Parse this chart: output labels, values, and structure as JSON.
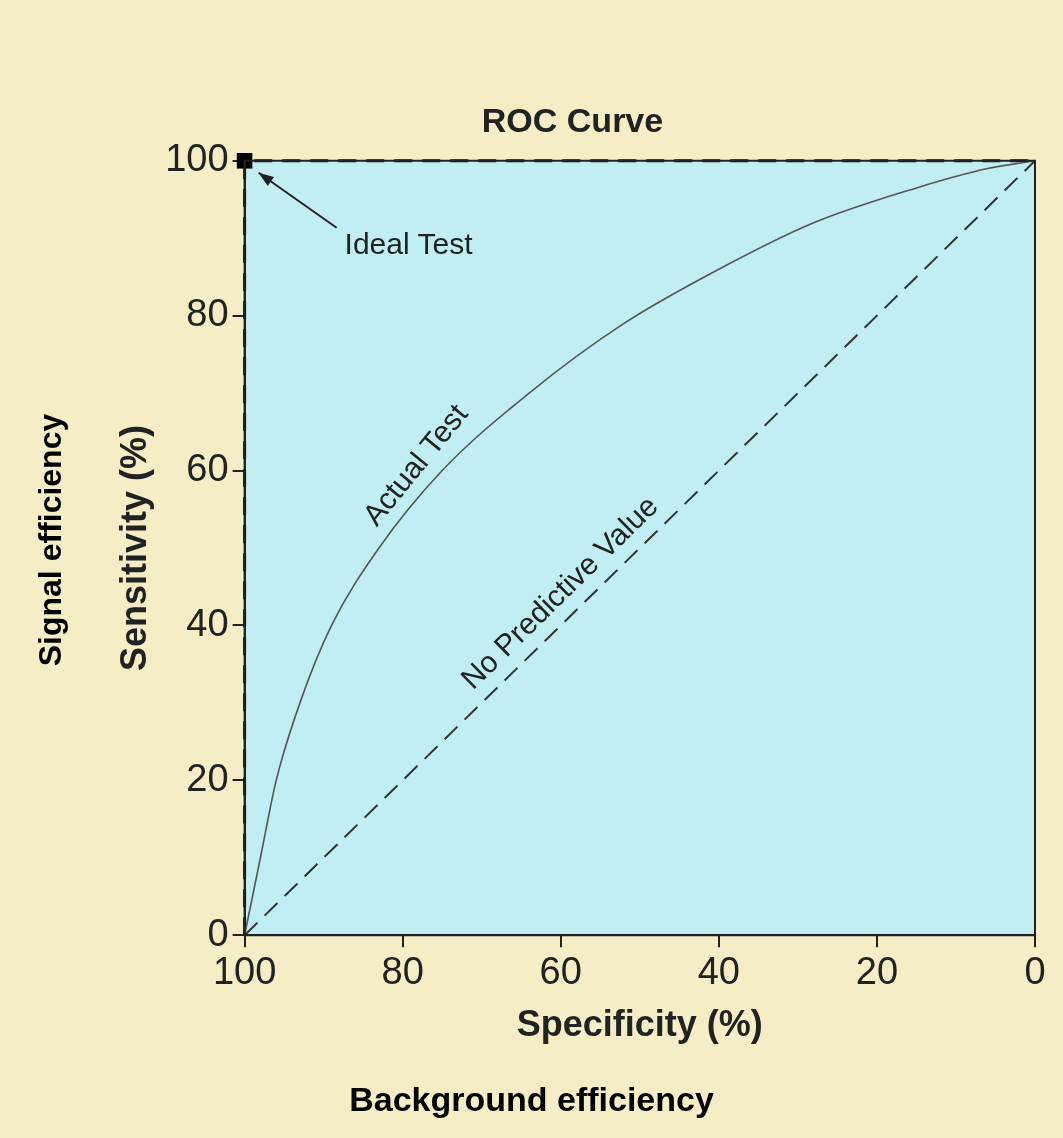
{
  "chart_data": {
    "type": "line",
    "title": "ROC Curve",
    "xlabel": "Specificity (%)",
    "ylabel": "Sensitivity (%)",
    "xlim": [
      100,
      0
    ],
    "ylim": [
      0,
      100
    ],
    "xticks": [
      100,
      80,
      60,
      40,
      20,
      0
    ],
    "yticks": [
      0,
      20,
      40,
      60,
      80,
      100
    ],
    "grid": false,
    "legend": false,
    "series": [
      {
        "name": "Actual Test",
        "type": "line",
        "color": "#555555",
        "line_style": "solid",
        "x": [
          100,
          98,
          96,
          93,
          89,
          83,
          75,
          64,
          52,
          40,
          28,
          15,
          6,
          0
        ],
        "values": [
          0,
          10,
          20,
          30,
          40,
          50,
          60,
          70,
          79,
          86,
          92,
          96.5,
          99,
          100
        ]
      },
      {
        "name": "No Predictive Value",
        "type": "line",
        "color": "#333333",
        "line_style": "dashed",
        "x": [
          100,
          0
        ],
        "values": [
          0,
          100
        ]
      },
      {
        "type": "line",
        "color": "#111111",
        "line_style": "dashed",
        "x": [
          100,
          100,
          0
        ],
        "values": [
          0,
          100,
          100
        ]
      },
      {
        "type": "scatter",
        "color": "#000000",
        "marker": "square",
        "x": [
          100
        ],
        "values": [
          100
        ]
      }
    ],
    "annotations": [
      "Ideal Test",
      "Background efficiency",
      "Signal efficiency"
    ]
  }
}
